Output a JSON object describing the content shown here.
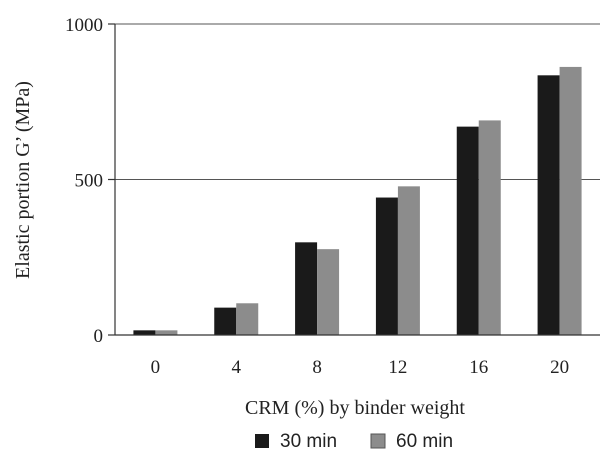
{
  "chart_data": {
    "type": "bar",
    "title": "",
    "xlabel": "CRM (%) by binder weight",
    "ylabel": "Elastic portion G’ (MPa)",
    "categories": [
      "0",
      "4",
      "8",
      "12",
      "16",
      "20"
    ],
    "ylim": [
      0,
      1000
    ],
    "yticks": [
      "0",
      "500",
      "1000"
    ],
    "grid": "horizontal at 500 and 1000",
    "legend_position": "bottom-center",
    "series": [
      {
        "name": "30 min",
        "color": "#1a1a1a",
        "values": [
          15,
          88,
          298,
          442,
          670,
          835
        ]
      },
      {
        "name": "60 min",
        "color": "#8c8c8c",
        "values": [
          15,
          102,
          276,
          478,
          690,
          862
        ]
      }
    ]
  }
}
